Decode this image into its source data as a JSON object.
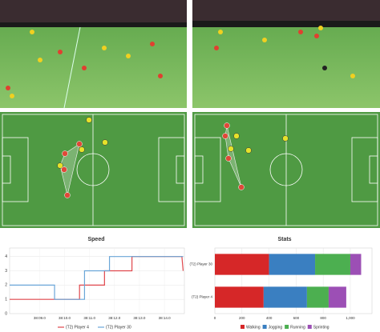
{
  "chart_data": [
    {
      "type": "line",
      "title": "Speed",
      "series": [
        {
          "name": "(T2) Player 4",
          "color": "#e0474c",
          "x": [
            7.8,
            10.6,
            10.6,
            11.6,
            11.6,
            12.7,
            12.7,
            14.7,
            14.75
          ],
          "values": [
            1,
            1,
            2,
            2,
            3,
            3,
            4,
            4,
            3
          ]
        },
        {
          "name": "(T2) Player 30",
          "color": "#6aa6d8",
          "x": [
            7.8,
            9.6,
            9.6,
            10.8,
            10.8,
            11.8,
            11.8,
            14.75
          ],
          "values": [
            2,
            2,
            1,
            1,
            3,
            3,
            4,
            4
          ]
        }
      ],
      "xlim": [
        7.8,
        14.8
      ],
      "xticks": [
        {
          "value": 9,
          "label": "38:09.0"
        },
        {
          "value": 10,
          "label": "38:10.0"
        },
        {
          "value": 11,
          "label": "38:11.0"
        },
        {
          "value": 12,
          "label": "38:12.0"
        },
        {
          "value": 13,
          "label": "38:13.0"
        },
        {
          "value": 14,
          "label": "38:14.0"
        }
      ],
      "ylim": [
        0,
        4.6
      ],
      "yticks": [
        0,
        1,
        2,
        3,
        4
      ],
      "grid": true
    },
    {
      "type": "bar",
      "title": "Stats",
      "orientation": "horizontal",
      "stacked": true,
      "categories": [
        "(T2) Player 30",
        "(T2) Player 4"
      ],
      "series": [
        {
          "name": "Walking",
          "color": "#d62728",
          "values": [
            400,
            360
          ]
        },
        {
          "name": "Jogging",
          "color": "#3a7fc1",
          "values": [
            340,
            320
          ]
        },
        {
          "name": "Running",
          "color": "#4caf50",
          "values": [
            260,
            160
          ]
        },
        {
          "name": "Sprinting",
          "color": "#9c4fb5",
          "values": [
            80,
            130
          ]
        }
      ],
      "xlim": [
        0,
        1160
      ],
      "xticks": [
        0,
        200,
        400,
        600,
        800,
        {
          "value": 1000,
          "label": "1,000"
        }
      ],
      "grid": true
    }
  ]
}
